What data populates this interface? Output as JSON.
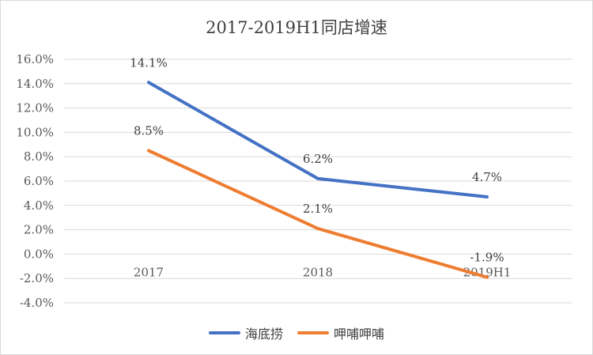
{
  "chart_data": {
    "type": "line",
    "title": "2017-2019H1同店增速",
    "categories": [
      "2017",
      "2018",
      "2019H1"
    ],
    "ylim": [
      -4.0,
      16.0
    ],
    "ytick_step": 2.0,
    "y_format": "percent_1dp",
    "grid": true,
    "legend_position": "bottom",
    "series": [
      {
        "name": "海底捞",
        "color": "#4472C4",
        "values": [
          14.1,
          6.2,
          4.7
        ],
        "labels": [
          "14.1%",
          "6.2%",
          "4.7%"
        ]
      },
      {
        "name": "呷哺呷哺",
        "color": "#ED7D31",
        "values": [
          8.5,
          2.1,
          -1.9
        ],
        "labels": [
          "8.5%",
          "2.1%",
          "-1.9%"
        ]
      }
    ]
  }
}
